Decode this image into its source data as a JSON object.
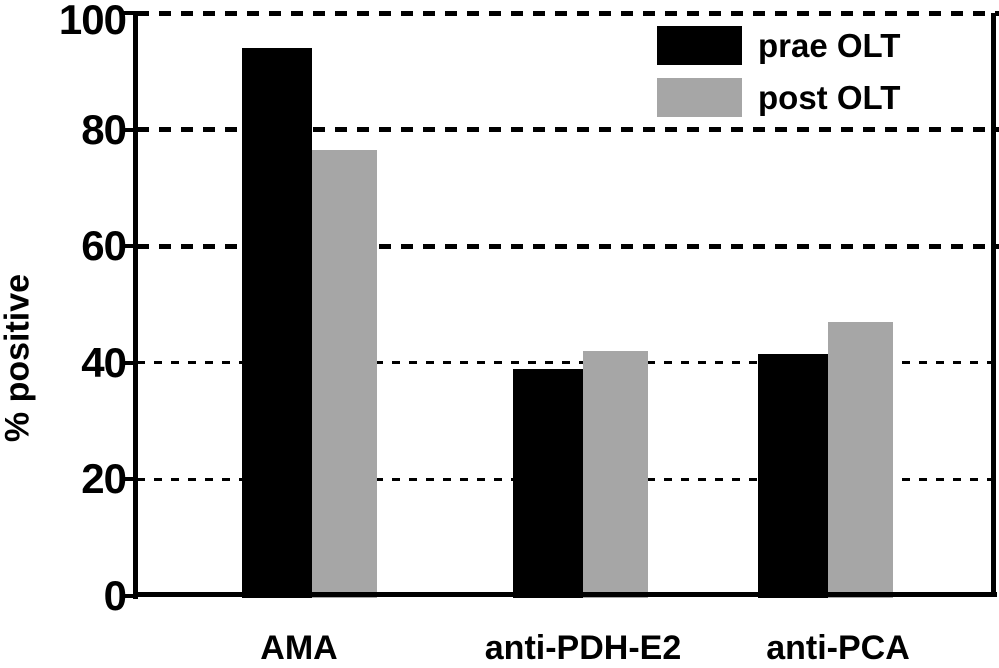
{
  "chart_data": {
    "type": "bar",
    "title": "",
    "xlabel": "",
    "ylabel": "% positive",
    "categories": [
      "AMA",
      "anti-PDH-E2",
      "anti-PCA"
    ],
    "series": [
      {
        "name": "prae OLT",
        "color": "#000000",
        "values": [
          94,
          39,
          41.5
        ]
      },
      {
        "name": "post OLT",
        "color": "#a6a6a6",
        "values": [
          76.5,
          42,
          47
        ]
      }
    ],
    "ylim": [
      0,
      100
    ],
    "yticks": [
      0,
      20,
      40,
      60,
      80,
      100
    ],
    "grid": "horizontal-dashed",
    "legend_position": "top-right",
    "background": "#ffffff"
  }
}
